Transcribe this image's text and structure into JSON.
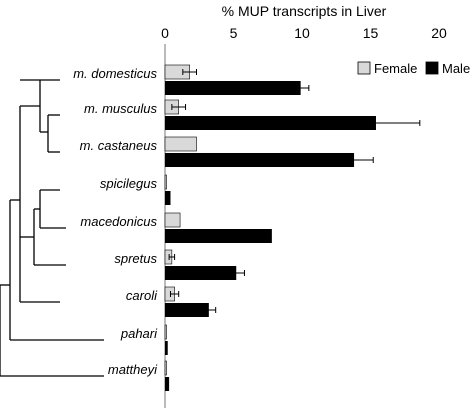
{
  "chart_data": {
    "type": "bar",
    "orientation": "horizontal",
    "title": "% MUP transcripts in Liver",
    "xlim": [
      0,
      22
    ],
    "xticks": [
      0,
      5,
      10,
      15,
      20
    ],
    "categories": [
      "m. domesticus",
      "m. musculus",
      "m. castaneus",
      "spicilegus",
      "macedonicus",
      "spretus",
      "caroli",
      "pahari",
      "mattheyi"
    ],
    "series": [
      {
        "name": "Female",
        "color": "#d9d9d9",
        "values": [
          1.8,
          1.0,
          2.3,
          0.1,
          1.1,
          0.5,
          0.7,
          0.05,
          0.05
        ],
        "errors": [
          0.5,
          0.5,
          0,
          0,
          0,
          0.2,
          0.3,
          0,
          0
        ]
      },
      {
        "name": "Male",
        "color": "#000000",
        "values": [
          9.9,
          15.4,
          13.8,
          0.4,
          7.8,
          5.2,
          3.2,
          0.2,
          0.3
        ],
        "errors": [
          0.6,
          3.2,
          1.4,
          0,
          0,
          0.6,
          0.5,
          0,
          0
        ]
      }
    ],
    "legend_position": "top-right",
    "grid": false
  }
}
